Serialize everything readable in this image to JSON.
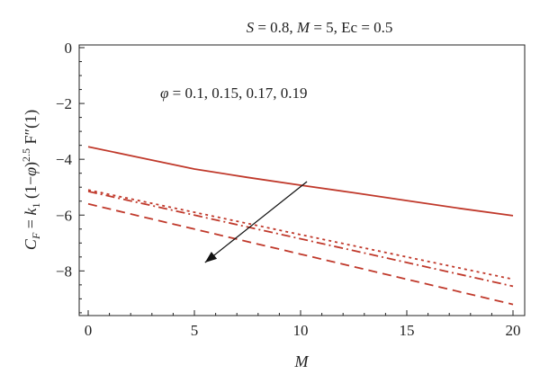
{
  "chart_data": {
    "type": "line",
    "title": "S = 0.8, M = 5, Ec = 0.5",
    "xlabel": "M",
    "ylabel": "C_F = k_1 (1−φ)^2.5 F″(1)",
    "xlim": [
      0,
      20
    ],
    "ylim": [
      -9.6,
      0
    ],
    "x_ticks": [
      0,
      5,
      10,
      15,
      20
    ],
    "y_ticks": [
      0,
      -2,
      -4,
      -6,
      -8
    ],
    "annotation": "φ = 0.1, 0.15, 0.17, 0.19",
    "arrow": {
      "from": [
        10.3,
        -4.8
      ],
      "to": [
        5.5,
        -7.7
      ]
    },
    "series": [
      {
        "dash": "solid",
        "color": "#c0392b",
        "x": [
          0,
          2.5,
          5,
          7.5,
          10,
          12.5,
          15,
          17.5,
          20
        ],
        "values": [
          -3.55,
          -3.95,
          -4.35,
          -4.65,
          -4.93,
          -5.2,
          -5.48,
          -5.76,
          -6.02
        ]
      },
      {
        "dash": "dotted",
        "color": "#c0392b",
        "x": [
          0,
          5,
          10,
          15,
          20
        ],
        "values": [
          -5.1,
          -5.9,
          -6.7,
          -7.5,
          -8.3
        ]
      },
      {
        "dash": "dashdot",
        "color": "#c0392b",
        "x": [
          0,
          5,
          10,
          15,
          20
        ],
        "values": [
          -5.15,
          -6.0,
          -6.85,
          -7.7,
          -8.55
        ]
      },
      {
        "dash": "dashed",
        "color": "#c0392b",
        "x": [
          0,
          5,
          10,
          15,
          20
        ],
        "values": [
          -5.6,
          -6.5,
          -7.4,
          -8.3,
          -9.2
        ]
      }
    ]
  }
}
